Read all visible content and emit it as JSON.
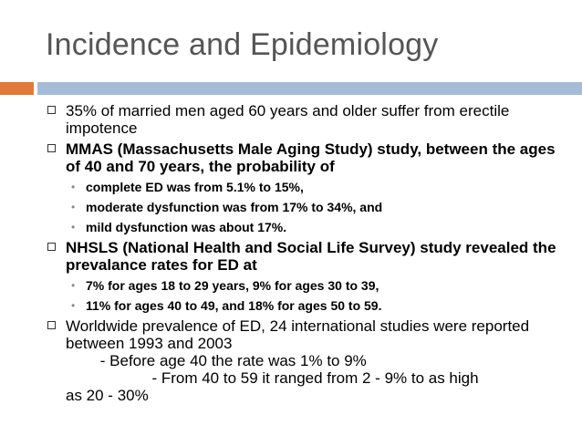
{
  "slide": {
    "title": "Incidence and Epidemiology",
    "bullets": [
      {
        "text": "35% of married men aged 60 years and older suffer from erectile impotence",
        "bold": false
      },
      {
        "text": "MMAS (Massachusetts Male Aging Study) study, between the ages of 40 and 70 years, the probability of",
        "bold": true,
        "subs": [
          "complete ED was from 5.1% to 15%,",
          "moderate dysfunction was from 17% to 34%, and",
          "mild dysfunction was about 17%."
        ]
      },
      {
        "text": "NHSLS (National Health and Social Life Survey) study revealed the prevalance rates for ED at",
        "bold": true,
        "subs": [
          "7% for ages 18 to 29 years, 9% for ages 30 to 39,",
          "11% for ages 40 to 49, and 18% for ages 50 to 59."
        ]
      },
      {
        "text": "Worldwide prevalence of ED, 24 international studies were reported between 1993 and 2003",
        "line2": "        - Before age 40 the rate was 1% to 9%",
        "line3": "                    - From 40 to 59 it ranged from 2 - 9% to as high",
        "line4": "as 20 - 30%",
        "bold": false
      }
    ]
  }
}
